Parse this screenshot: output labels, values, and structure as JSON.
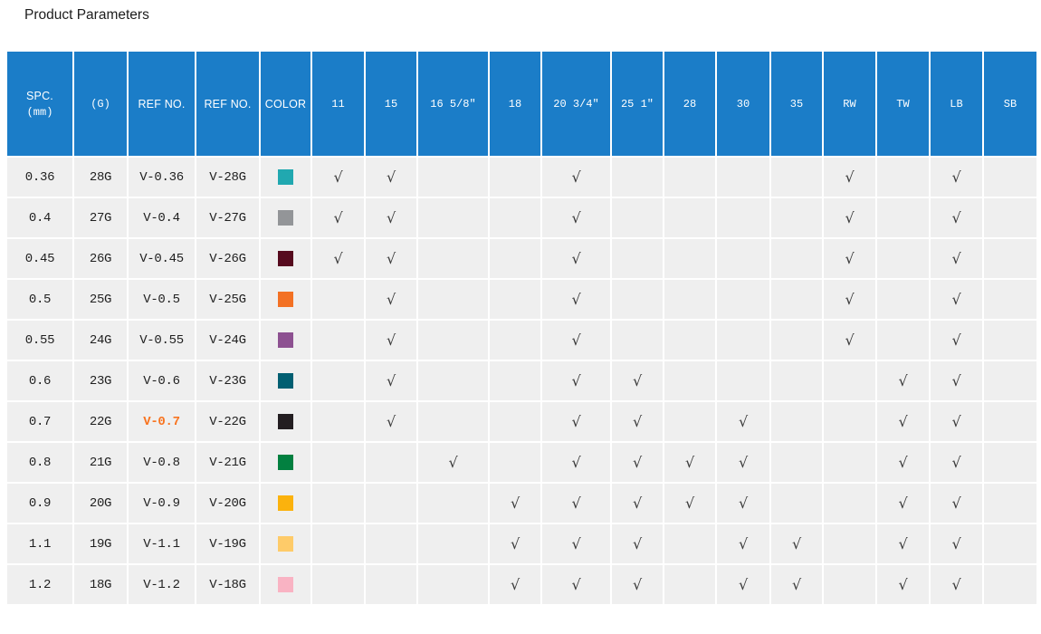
{
  "page": {
    "title": "Product Parameters"
  },
  "colors": {
    "header_bg": "#1b7dc8",
    "header_text": "#ffffff",
    "row_bg": "#efefef",
    "grid": "#ffffff",
    "text_primary": "#1f1f1f",
    "text_ref": "#464646",
    "check": "#3a3a3a",
    "highlight": "#f87420",
    "title": "#1d1d1d"
  },
  "table": {
    "header": {
      "spc_line1": "SPC.",
      "spc_line2": "(mm)",
      "gauge": "(G)",
      "ref1": "REF NO.",
      "ref2": "REF NO.",
      "color": "COLOR",
      "sizes": [
        "11",
        "15",
        "16 5/8″",
        "18",
        "20 3/4″",
        "25 1″",
        "28",
        "30",
        "35",
        "RW",
        "TW",
        "LB",
        "SB"
      ]
    },
    "check_glyph": "√",
    "rows": [
      {
        "spc": "0.36",
        "gauge": "28G",
        "ref1": "V-0.36",
        "ref1_highlight": false,
        "ref2": "V-28G",
        "swatch": "#21a8b0",
        "checks": [
          1,
          1,
          0,
          0,
          1,
          0,
          0,
          0,
          0,
          1,
          0,
          1,
          0
        ]
      },
      {
        "spc": "0.4",
        "gauge": "27G",
        "ref1": "V-0.4",
        "ref1_highlight": false,
        "ref2": "V-27G",
        "swatch": "#939598",
        "checks": [
          1,
          1,
          0,
          0,
          1,
          0,
          0,
          0,
          0,
          1,
          0,
          1,
          0
        ]
      },
      {
        "spc": "0.45",
        "gauge": "26G",
        "ref1": "V-0.45",
        "ref1_highlight": false,
        "ref2": "V-26G",
        "swatch": "#560a1e",
        "checks": [
          1,
          1,
          0,
          0,
          1,
          0,
          0,
          0,
          0,
          1,
          0,
          1,
          0
        ]
      },
      {
        "spc": "0.5",
        "gauge": "25G",
        "ref1": "V-0.5",
        "ref1_highlight": false,
        "ref2": "V-25G",
        "swatch": "#f37124",
        "checks": [
          0,
          1,
          0,
          0,
          1,
          0,
          0,
          0,
          0,
          1,
          0,
          1,
          0
        ]
      },
      {
        "spc": "0.55",
        "gauge": "24G",
        "ref1": "V-0.55",
        "ref1_highlight": false,
        "ref2": "V-24G",
        "swatch": "#8d5191",
        "checks": [
          0,
          1,
          0,
          0,
          1,
          0,
          0,
          0,
          0,
          1,
          0,
          1,
          0
        ]
      },
      {
        "spc": "0.6",
        "gauge": "23G",
        "ref1": "V-0.6",
        "ref1_highlight": false,
        "ref2": "V-23G",
        "swatch": "#015f72",
        "checks": [
          0,
          1,
          0,
          0,
          1,
          1,
          0,
          0,
          0,
          0,
          1,
          1,
          0
        ]
      },
      {
        "spc": "0.7",
        "gauge": "22G",
        "ref1": "V-0.7",
        "ref1_highlight": true,
        "ref2": "V-22G",
        "swatch": "#231e21",
        "checks": [
          0,
          1,
          0,
          0,
          1,
          1,
          0,
          1,
          0,
          0,
          1,
          1,
          0
        ]
      },
      {
        "spc": "0.8",
        "gauge": "21G",
        "ref1": "V-0.8",
        "ref1_highlight": false,
        "ref2": "V-21G",
        "swatch": "#028040",
        "checks": [
          0,
          0,
          1,
          0,
          1,
          1,
          1,
          1,
          0,
          0,
          1,
          1,
          0
        ]
      },
      {
        "spc": "0.9",
        "gauge": "20G",
        "ref1": "V-0.9",
        "ref1_highlight": false,
        "ref2": "V-20G",
        "swatch": "#fbb20d",
        "checks": [
          0,
          0,
          0,
          1,
          1,
          1,
          1,
          1,
          0,
          0,
          1,
          1,
          0
        ]
      },
      {
        "spc": "1.1",
        "gauge": "19G",
        "ref1": "V-1.1",
        "ref1_highlight": false,
        "ref2": "V-19G",
        "swatch": "#fecb69",
        "checks": [
          0,
          0,
          0,
          1,
          1,
          1,
          0,
          1,
          1,
          0,
          1,
          1,
          0
        ]
      },
      {
        "spc": "1.2",
        "gauge": "18G",
        "ref1": "V-1.2",
        "ref1_highlight": false,
        "ref2": "V-18G",
        "swatch": "#f9b3c3",
        "checks": [
          0,
          0,
          0,
          1,
          1,
          1,
          0,
          1,
          1,
          0,
          1,
          1,
          0
        ]
      }
    ]
  }
}
